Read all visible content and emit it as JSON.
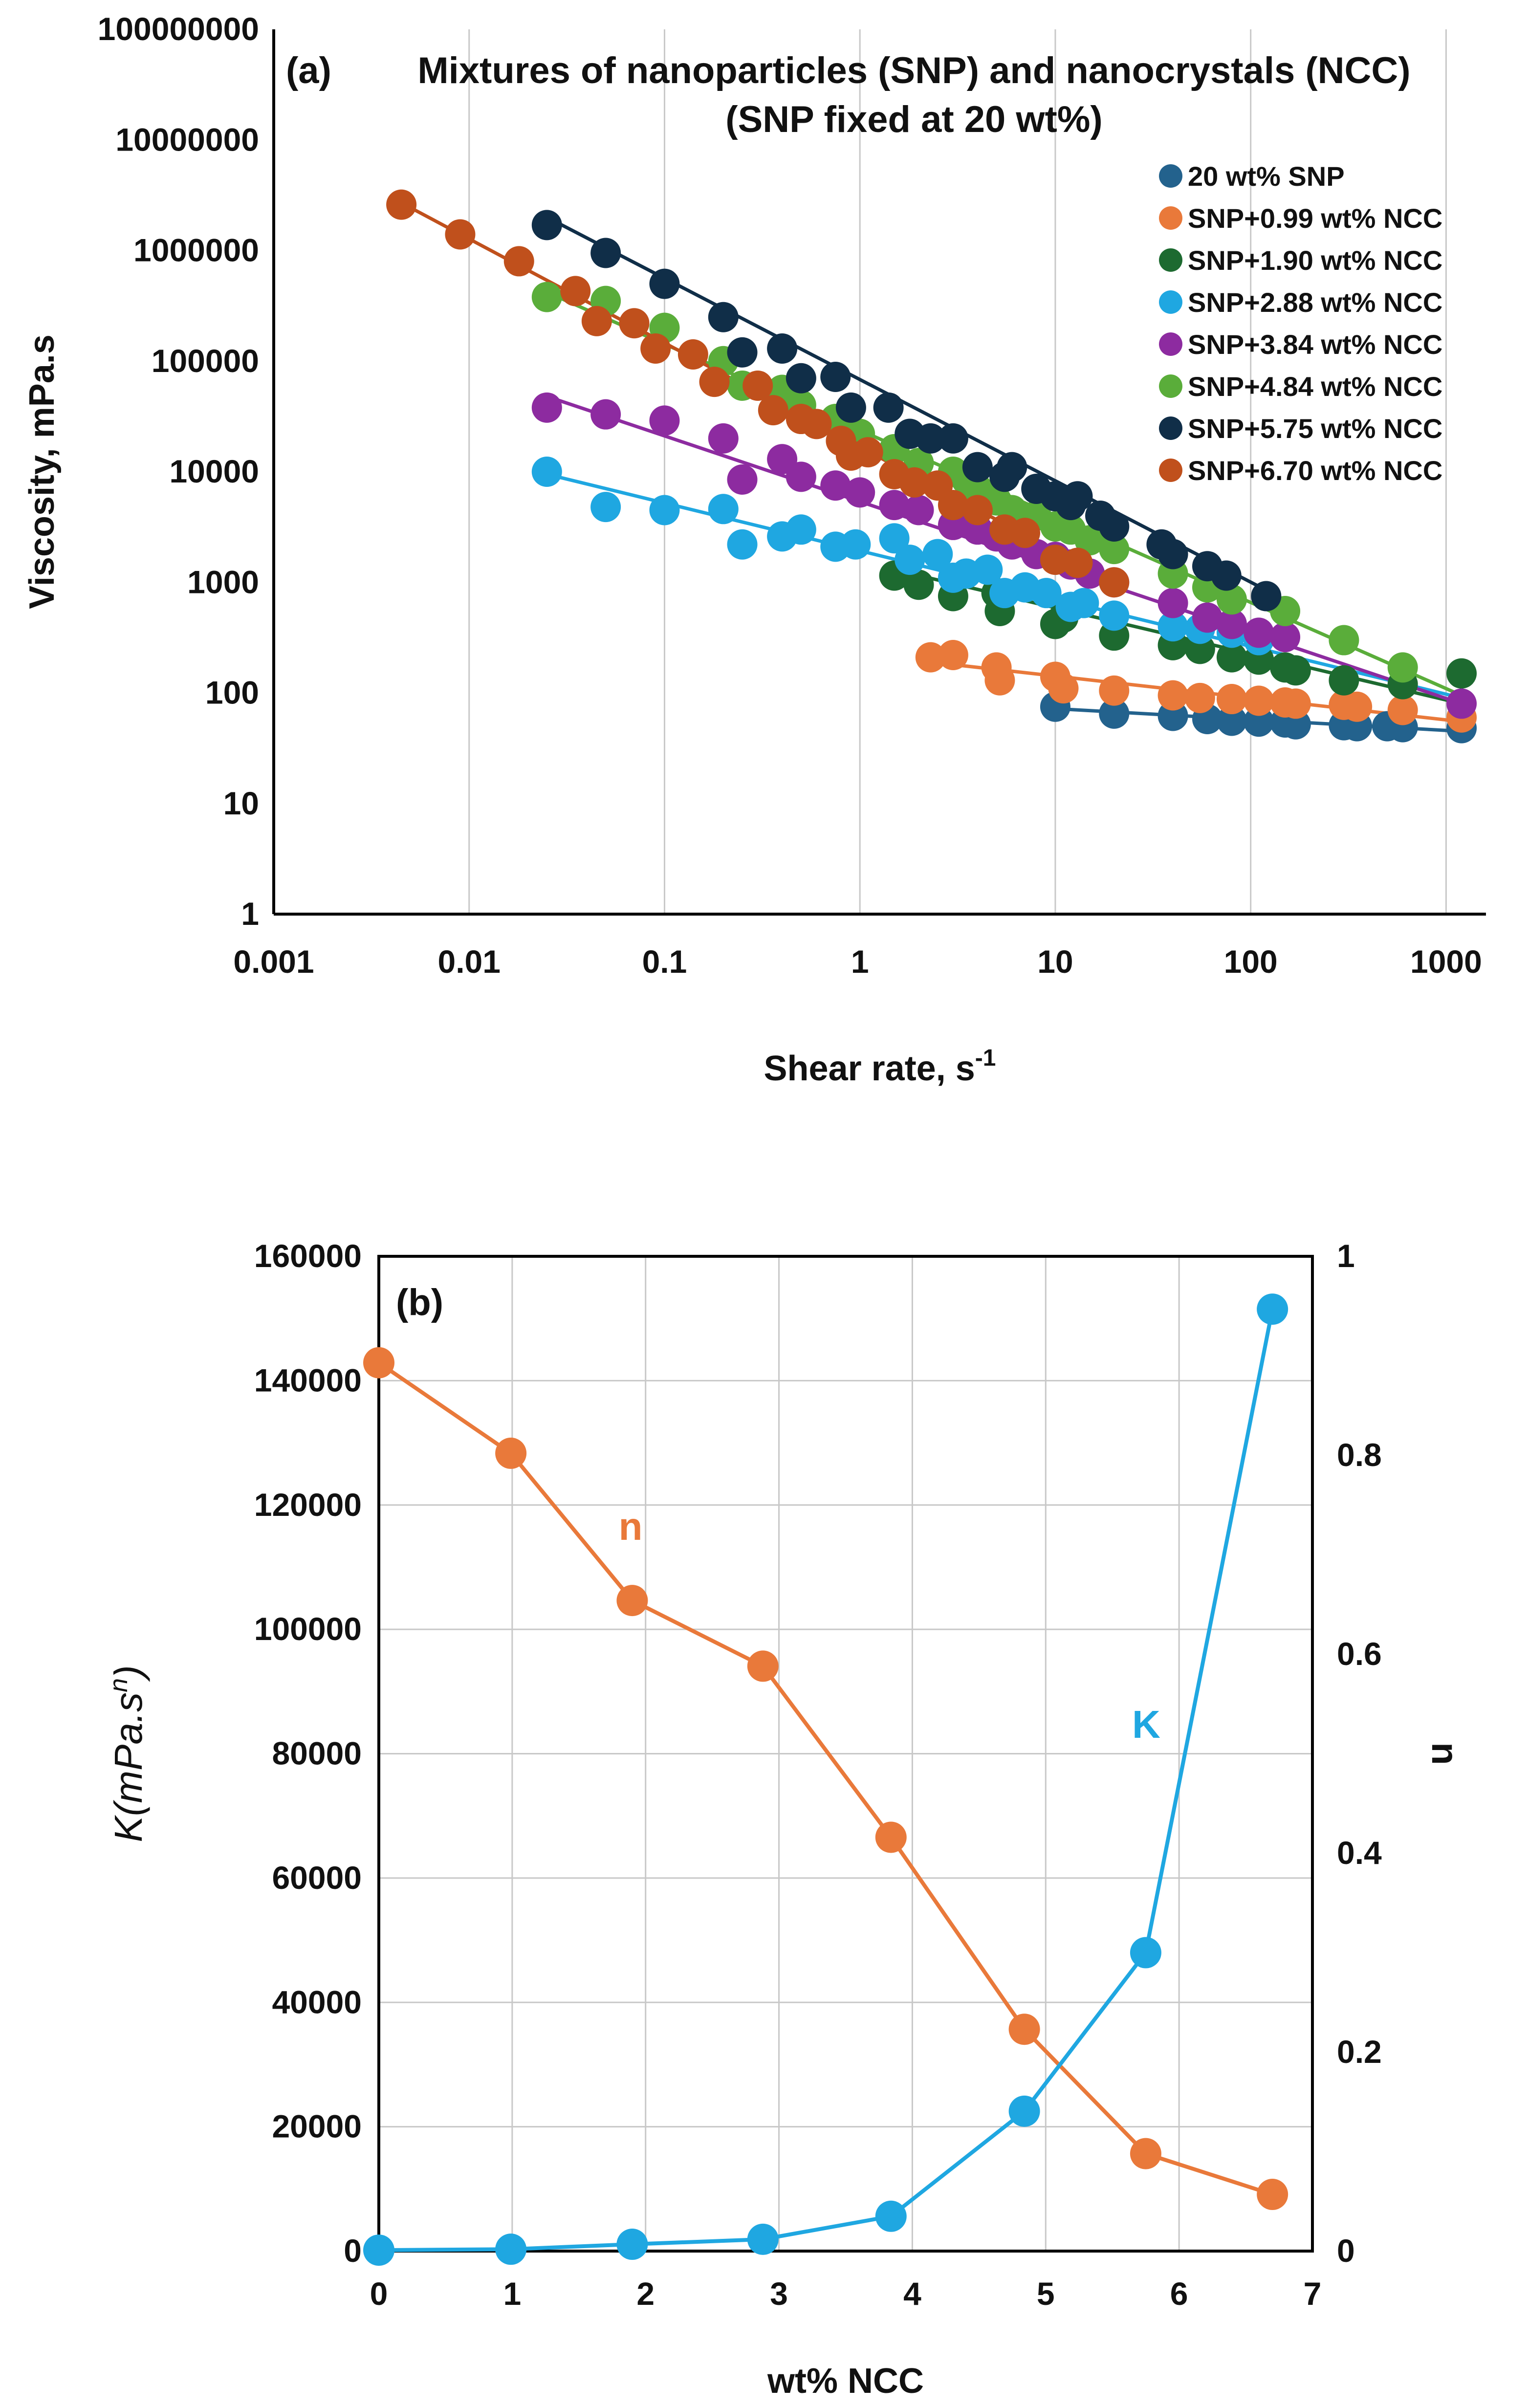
{
  "chart_data": [
    {
      "type": "scatter",
      "panel": "(a)",
      "title": "Mixtures of nanoparticles (SNP) and nanocrystals (NCC)",
      "subtitle": "(SNP fixed at 20 wt%)",
      "xlabel": "Shear rate, s",
      "xlabel_sup": "-1",
      "ylabel": "Viscosity, mPa.s",
      "xscale": "log",
      "yscale": "log",
      "xlim": [
        0.001,
        1600
      ],
      "ylim": [
        1,
        100000000
      ],
      "xticks": [
        "0.001",
        "0.01",
        "0.1",
        "1",
        "10",
        "100",
        "1000"
      ],
      "yticks": [
        "1",
        "10",
        "100",
        "1000",
        "10000",
        "100000",
        "1000000",
        "10000000",
        "100000000"
      ],
      "grid": "vertical",
      "legend_position": "right",
      "series": [
        {
          "name": "20 wt% SNP",
          "color": "#23628d",
          "x": [
            10,
            20,
            40,
            60,
            80,
            110,
            150,
            170,
            300,
            350,
            500,
            600,
            1200
          ],
          "y": [
            75,
            65,
            62,
            58,
            56,
            55,
            54,
            52,
            51,
            50,
            50,
            49,
            48
          ],
          "fit": [
            [
              10,
              72
            ],
            [
              1200,
              45
            ]
          ]
        },
        {
          "name": "SNP+0.99 wt% NCC",
          "color": "#e9793a",
          "x": [
            2.3,
            3.0,
            5.0,
            5.2,
            10,
            11,
            20,
            40,
            55,
            80,
            110,
            150,
            170,
            300,
            350,
            600,
            1200
          ],
          "y": [
            210,
            220,
            170,
            130,
            140,
            110,
            105,
            95,
            90,
            88,
            85,
            82,
            80,
            78,
            75,
            70,
            60
          ],
          "fit": [
            [
              2.3,
              190
            ],
            [
              1200,
              55
            ]
          ]
        },
        {
          "name": "SNP+1.90 wt% NCC",
          "color": "#1d6a30",
          "x": [
            1.5,
            2.0,
            3.0,
            5.0,
            5.2,
            10,
            11,
            20,
            40,
            55,
            80,
            110,
            150,
            170,
            300,
            600,
            1200
          ],
          "y": [
            1150,
            950,
            750,
            800,
            550,
            420,
            480,
            330,
            270,
            250,
            210,
            200,
            170,
            160,
            130,
            120,
            150
          ],
          "fit": [
            [
              1.5,
              1300
            ],
            [
              1200,
              80
            ]
          ]
        },
        {
          "name": "SNP+2.88 wt% NCC",
          "color": "#1fa7e1",
          "x": [
            0.025,
            0.05,
            0.1,
            0.2,
            0.25,
            0.4,
            0.5,
            0.75,
            0.95,
            1.5,
            1.8,
            2.5,
            3.0,
            3.5,
            4.5,
            5.5,
            7,
            9,
            12,
            14,
            20,
            40,
            55,
            80,
            110
          ],
          "y": [
            10000,
            4800,
            4500,
            4600,
            2200,
            2600,
            3000,
            2100,
            2200,
            2500,
            1600,
            1800,
            1100,
            1200,
            1300,
            800,
            900,
            800,
            600,
            650,
            500,
            400,
            380,
            350,
            300
          ],
          "fit": [
            [
              0.025,
              9500
            ],
            [
              1200,
              90
            ]
          ]
        },
        {
          "name": "SNP+3.84 wt% NCC",
          "color": "#8d2ba0",
          "x": [
            0.025,
            0.05,
            0.1,
            0.2,
            0.25,
            0.4,
            0.5,
            0.75,
            1.0,
            1.5,
            2.0,
            3.0,
            4.0,
            5.0,
            6.0,
            8.0,
            10,
            12,
            15,
            20,
            40,
            60,
            80,
            110,
            150,
            1200
          ],
          "y": [
            38000,
            33000,
            29000,
            20000,
            8500,
            13000,
            9000,
            7500,
            6500,
            5000,
            4500,
            3300,
            3000,
            2600,
            2200,
            1800,
            1700,
            1450,
            1200,
            1000,
            650,
            480,
            420,
            350,
            320,
            80
          ],
          "fit": [
            [
              0.025,
              48000
            ],
            [
              1200,
              80
            ]
          ]
        },
        {
          "name": "SNP+4.84 wt% NCC",
          "color": "#5aad3a",
          "x": [
            0.025,
            0.05,
            0.1,
            0.2,
            0.25,
            0.4,
            0.5,
            0.75,
            1.0,
            1.5,
            2.0,
            3.0,
            3.5,
            4.0,
            5.0,
            6.0,
            8.0,
            10,
            12,
            15,
            20,
            40,
            60,
            80,
            150,
            300,
            600
          ],
          "y": [
            380000,
            350000,
            200000,
            100000,
            60000,
            55000,
            40000,
            30000,
            22000,
            16000,
            12000,
            10000,
            8500,
            7000,
            5500,
            4500,
            4000,
            3200,
            3000,
            2400,
            2000,
            1200,
            900,
            700,
            550,
            300,
            170
          ],
          "fit": [
            [
              0.025,
              420000
            ],
            [
              1200,
              95
            ]
          ]
        },
        {
          "name": "SNP+5.75 wt% NCC",
          "color": "#102e48",
          "x": [
            0.025,
            0.05,
            0.1,
            0.2,
            0.25,
            0.4,
            0.5,
            0.75,
            0.9,
            1.4,
            1.8,
            2.3,
            3.0,
            4.0,
            5.5,
            6.0,
            8.0,
            10,
            12,
            13,
            17,
            20,
            35,
            40,
            60,
            75,
            120
          ],
          "y": [
            1700000,
            950000,
            500000,
            250000,
            120000,
            130000,
            70000,
            72000,
            38000,
            38000,
            22000,
            20000,
            20000,
            11000,
            9000,
            11000,
            7000,
            6000,
            5000,
            6000,
            4000,
            3200,
            2200,
            1800,
            1400,
            1150,
            750
          ],
          "fit": [
            [
              0.025,
              2000000
            ],
            [
              120,
              850
            ]
          ]
        },
        {
          "name": "SNP+6.70 wt% NCC",
          "color": "#c0501c",
          "x": [
            0.0045,
            0.009,
            0.018,
            0.035,
            0.045,
            0.07,
            0.09,
            0.14,
            0.18,
            0.3,
            0.36,
            0.5,
            0.6,
            0.8,
            0.9,
            1.1,
            1.5,
            1.9,
            2.5,
            3.0,
            4.0,
            5.5,
            7.0,
            10,
            13,
            20
          ],
          "y": [
            2600000,
            1400000,
            800000,
            430000,
            230000,
            220000,
            130000,
            115000,
            65000,
            60000,
            36000,
            30000,
            27000,
            19000,
            14000,
            15000,
            9500,
            8000,
            7500,
            5000,
            4500,
            3000,
            2800,
            1600,
            1500,
            1000
          ],
          "fit": [
            [
              0.0045,
              2700000
            ],
            [
              20,
              1000
            ]
          ]
        }
      ]
    },
    {
      "type": "line",
      "panel": "(b)",
      "xlabel": "wt% NCC",
      "ylabel": "K(mPa.s",
      "ylabel_sup": "n",
      "ylabel_close": ")",
      "y2label": "n",
      "xlim": [
        0,
        7
      ],
      "ylim": [
        0,
        160000
      ],
      "y2lim": [
        0,
        1
      ],
      "xticks": [
        "0",
        "1",
        "2",
        "3",
        "4",
        "5",
        "6",
        "7"
      ],
      "yticks": [
        "0",
        "20000",
        "40000",
        "60000",
        "80000",
        "100000",
        "120000",
        "140000",
        "160000"
      ],
      "y2ticks": [
        "0",
        "0.2",
        "0.4",
        "0.6",
        "0.8",
        "1"
      ],
      "grid": "both",
      "x": [
        0,
        0.99,
        1.9,
        2.88,
        3.84,
        4.84,
        5.75,
        6.7
      ],
      "series": [
        {
          "name": "n",
          "axis": "right",
          "color": "#e9793a",
          "values": [
            0.893,
            0.802,
            0.654,
            0.588,
            0.416,
            0.223,
            0.098,
            0.057
          ]
        },
        {
          "name": "K",
          "axis": "left",
          "color": "#1fa7e1",
          "values": [
            150,
            300,
            1100,
            1900,
            5600,
            22500,
            48000,
            151500
          ]
        }
      ]
    }
  ]
}
